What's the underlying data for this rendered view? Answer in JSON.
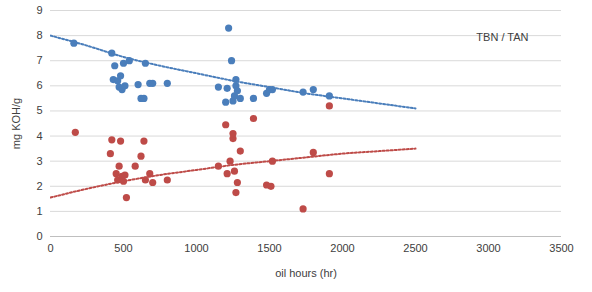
{
  "chart_data": {
    "type": "scatter",
    "annotation": "TBN / TAN",
    "x_label": "oil hours (hr)",
    "y_label": "mg KOH/g",
    "xlim": [
      0,
      3500
    ],
    "xticks": [
      0,
      500,
      1000,
      1500,
      2000,
      2500,
      3000,
      3500
    ],
    "ylim": [
      0,
      9
    ],
    "yticks": [
      0,
      1,
      2,
      3,
      4,
      5,
      6,
      7,
      8,
      9
    ],
    "grid": true,
    "series": [
      {
        "type": "scatter",
        "marker": "circle",
        "color": "#4a7ebb",
        "x": [
          160,
          420,
          430,
          440,
          460,
          470,
          480,
          490,
          500,
          510,
          540,
          600,
          620,
          640,
          650,
          680,
          700,
          800,
          1150,
          1200,
          1210,
          1220,
          1240,
          1250,
          1260,
          1270,
          1270,
          1280,
          1300,
          1390,
          1480,
          1500,
          1520,
          1730,
          1800,
          1910
        ],
        "values": [
          7.7,
          7.3,
          6.25,
          6.8,
          6.2,
          5.95,
          6.4,
          5.85,
          6.9,
          6.0,
          7.0,
          6.05,
          5.5,
          5.5,
          6.9,
          6.1,
          6.1,
          6.1,
          5.95,
          5.35,
          5.9,
          8.3,
          7.0,
          5.4,
          5.6,
          6.0,
          6.25,
          5.8,
          5.5,
          5.5,
          5.7,
          5.85,
          5.85,
          5.75,
          5.85,
          5.6
        ]
      },
      {
        "type": "scatter",
        "marker": "circle",
        "color": "#be4b48",
        "x": [
          170,
          410,
          420,
          450,
          460,
          470,
          480,
          490,
          500,
          510,
          520,
          580,
          620,
          640,
          650,
          680,
          700,
          800,
          1150,
          1200,
          1210,
          1230,
          1250,
          1250,
          1260,
          1270,
          1280,
          1300,
          1390,
          1480,
          1510,
          1520,
          1730,
          1800,
          1910,
          1910
        ],
        "values": [
          4.15,
          3.3,
          3.85,
          2.5,
          2.25,
          2.8,
          3.8,
          2.4,
          2.2,
          2.45,
          1.55,
          2.8,
          3.2,
          3.8,
          2.25,
          2.5,
          2.15,
          2.25,
          2.8,
          4.45,
          2.5,
          3.0,
          3.9,
          4.1,
          2.6,
          1.75,
          2.15,
          3.4,
          4.7,
          2.05,
          2.0,
          3.0,
          1.1,
          3.35,
          5.2,
          2.5
        ]
      },
      {
        "type": "line",
        "line_style": "dotted",
        "color": "#4a7ebb",
        "x": [
          0,
          250,
          500,
          750,
          1000,
          1250,
          1500,
          1750,
          2000,
          2250,
          2500
        ],
        "values": [
          8.0,
          7.6,
          7.15,
          6.8,
          6.5,
          6.2,
          5.95,
          5.7,
          5.5,
          5.3,
          5.1
        ]
      },
      {
        "type": "line",
        "line_style": "dotted",
        "color": "#be4b48",
        "x": [
          0,
          250,
          500,
          750,
          1000,
          1250,
          1500,
          1750,
          2000,
          2250,
          2500
        ],
        "values": [
          1.55,
          1.9,
          2.2,
          2.45,
          2.65,
          2.85,
          3.0,
          3.15,
          3.3,
          3.4,
          3.5
        ]
      }
    ]
  }
}
